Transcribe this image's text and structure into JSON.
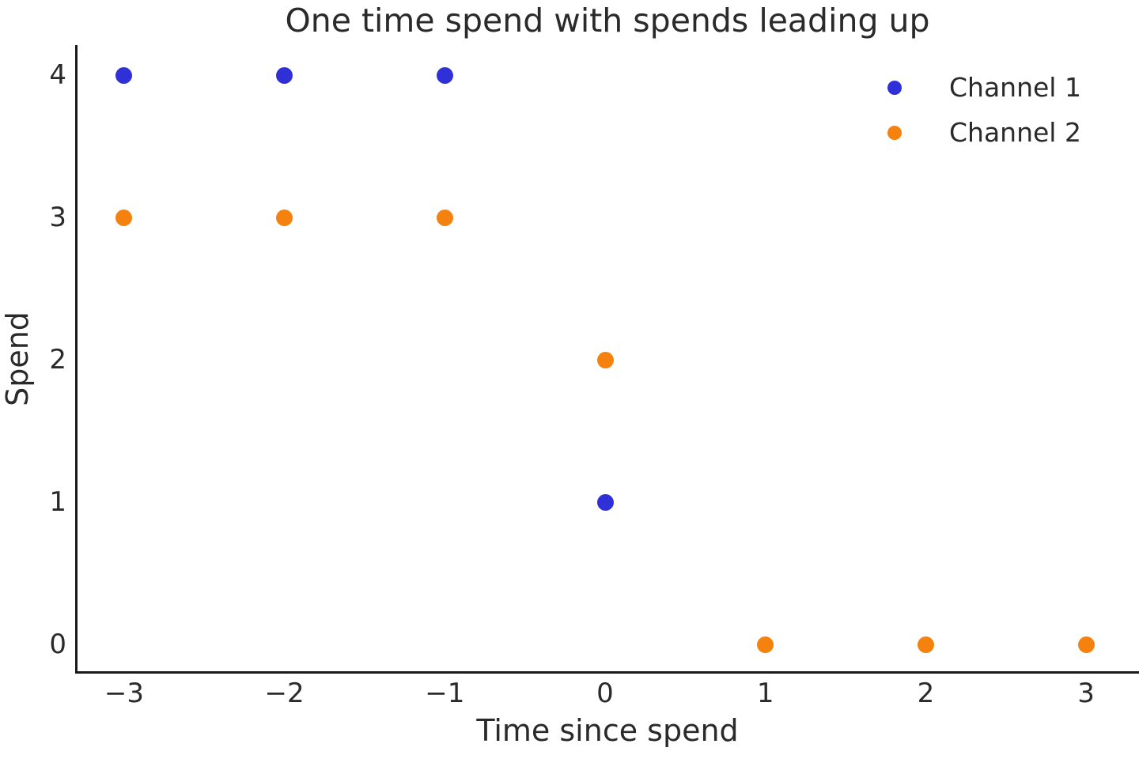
{
  "chart_data": {
    "type": "scatter",
    "title": "One time spend with spends leading up",
    "xlabel": "Time since spend",
    "ylabel": "Spend",
    "xticks": [
      -3,
      -2,
      -1,
      0,
      1,
      2,
      3
    ],
    "yticks": [
      0,
      1,
      2,
      3,
      4
    ],
    "xlim": [
      -3.3,
      3.33
    ],
    "ylim": [
      -0.19,
      4.21
    ],
    "grid": false,
    "legend_position": "upper right",
    "series": [
      {
        "name": "Channel 1",
        "color": "#3030d8",
        "points": [
          [
            -3,
            4
          ],
          [
            -2,
            4
          ],
          [
            -1,
            4
          ],
          [
            0,
            1
          ]
        ]
      },
      {
        "name": "Channel 2",
        "color": "#f5820f",
        "points": [
          [
            -3,
            3
          ],
          [
            -2,
            3
          ],
          [
            -1,
            3
          ],
          [
            0,
            2
          ],
          [
            1,
            0
          ],
          [
            2,
            0
          ],
          [
            3,
            0
          ]
        ]
      }
    ]
  }
}
